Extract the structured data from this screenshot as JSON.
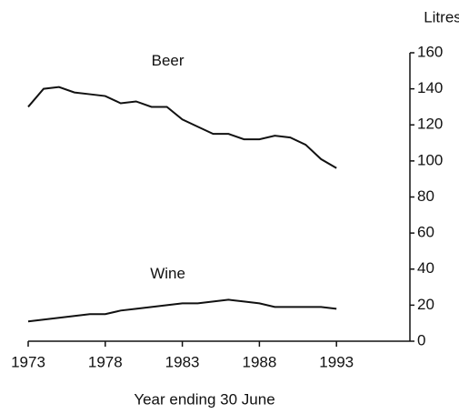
{
  "chart_data": {
    "type": "line",
    "y_label": "Litres",
    "x_label": "Year ending 30 June",
    "x": [
      1973,
      1974,
      1975,
      1976,
      1977,
      1978,
      1979,
      1980,
      1981,
      1982,
      1983,
      1984,
      1985,
      1986,
      1987,
      1988,
      1989,
      1990,
      1991,
      1992,
      1993
    ],
    "series": [
      {
        "name": "Beer",
        "color": "#111111",
        "values": [
          130,
          140,
          141,
          138,
          137,
          136,
          132,
          133,
          130,
          130,
          123,
          119,
          115,
          115,
          112,
          112,
          114,
          113,
          109,
          101,
          96
        ]
      },
      {
        "name": "Wine",
        "color": "#111111",
        "values": [
          11,
          12,
          13,
          14,
          15,
          15,
          17,
          18,
          19,
          20,
          21,
          21,
          22,
          23,
          22,
          21,
          19,
          19,
          19,
          19,
          18
        ]
      }
    ],
    "xlim": [
      1973,
      1998
    ],
    "xticks": [
      1973,
      1978,
      1983,
      1988,
      1993
    ],
    "ylim": [
      0,
      160
    ],
    "yticks": [
      0,
      20,
      40,
      60,
      80,
      100,
      120,
      140,
      160
    ],
    "y_axis_side": "right",
    "grid": false
  }
}
